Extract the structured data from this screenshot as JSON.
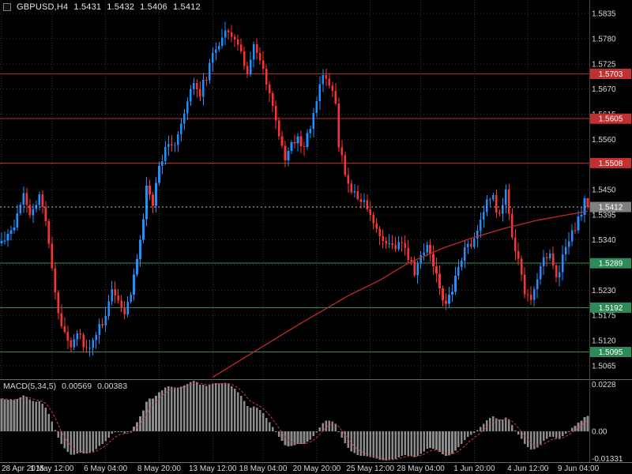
{
  "header": {
    "symbol_period": "GBPUSD,H4",
    "open": "1.5431",
    "high": "1.5432",
    "low": "1.5406",
    "close": "1.5412"
  },
  "macd_header": {
    "name": "MACD(5,34,5)",
    "value_main": "0.00569",
    "value_signal": "0.00383"
  },
  "colors": {
    "background": "#000000",
    "bull": "#1e90ff",
    "bear": "#ff3232",
    "resistance_line": "#b03030",
    "resistance_box": "#c23030",
    "support_line": "#2e8b57",
    "support_box": "#2e8b57",
    "current_box": "#7f7f7f",
    "current_line": "#bdbdbd",
    "ma_line": "#c62828",
    "grid": "#2f2f2f",
    "vgrid": "#353535",
    "axis_text": "#d9d9d9",
    "separator": "#6a6a6a",
    "histogram": "#8c8c8c",
    "signal_line": "#d23b3b"
  },
  "chart_data": {
    "type": "candlestick",
    "title": "GBPUSD H4 with MACD(5,34,5)",
    "symbol": "GBPUSD",
    "timeframe": "H4",
    "bars_total": 187,
    "last_candle": {
      "open": 1.5431,
      "high": 1.5432,
      "low": 1.5406,
      "close": 1.5412
    },
    "price_axis": {
      "min": 1.5039,
      "max": 1.5861,
      "ticks": [
        1.5835,
        1.578,
        1.5725,
        1.567,
        1.5615,
        1.556,
        1.5505,
        1.545,
        1.5395,
        1.534,
        1.5285,
        1.523,
        1.5175,
        1.512,
        1.5065
      ]
    },
    "levels": {
      "resistance": [
        1.5703,
        1.5605,
        1.5508
      ],
      "support": [
        1.5289,
        1.5192,
        1.5095
      ],
      "current_price": 1.5412
    },
    "time_labels": [
      {
        "bar": 0,
        "text": "28 Apr 2015"
      },
      {
        "bar": 16,
        "text": "1 May 12:00"
      },
      {
        "bar": 33,
        "text": "6 May 04:00"
      },
      {
        "bar": 50,
        "text": "8 May 20:00"
      },
      {
        "bar": 67,
        "text": "13 May 12:00"
      },
      {
        "bar": 83,
        "text": "18 May 04:00"
      },
      {
        "bar": 100,
        "text": "20 May 20:00"
      },
      {
        "bar": 117,
        "text": "25 May 12:00"
      },
      {
        "bar": 133,
        "text": "28 May 04:00"
      },
      {
        "bar": 150,
        "text": "1 Jun 20:00"
      },
      {
        "bar": 167,
        "text": "4 Jun 12:00"
      },
      {
        "bar": 183,
        "text": "9 Jun 04:00"
      }
    ],
    "price_path": [
      [
        0,
        1.5335
      ],
      [
        4,
        1.5375
      ],
      [
        7,
        1.545
      ],
      [
        9,
        1.5395
      ],
      [
        12,
        1.543
      ],
      [
        14,
        1.539
      ],
      [
        16,
        1.528
      ],
      [
        18,
        1.517
      ],
      [
        20,
        1.514
      ],
      [
        22,
        1.5115
      ],
      [
        24,
        1.514
      ],
      [
        26,
        1.511
      ],
      [
        28,
        1.5095
      ],
      [
        30,
        1.514
      ],
      [
        33,
        1.517
      ],
      [
        35,
        1.5235
      ],
      [
        37,
        1.521
      ],
      [
        39,
        1.517
      ],
      [
        41,
        1.523
      ],
      [
        44,
        1.533
      ],
      [
        46,
        1.545
      ],
      [
        48,
        1.542
      ],
      [
        50,
        1.55
      ],
      [
        53,
        1.556
      ],
      [
        55,
        1.5545
      ],
      [
        58,
        1.561
      ],
      [
        61,
        1.569
      ],
      [
        63,
        1.566
      ],
      [
        66,
        1.572
      ],
      [
        68,
        1.576
      ],
      [
        70,
        1.5785
      ],
      [
        72,
        1.5805
      ],
      [
        74,
        1.578
      ],
      [
        76,
        1.5745
      ],
      [
        78,
        1.571
      ],
      [
        80,
        1.576
      ],
      [
        82,
        1.573
      ],
      [
        84,
        1.568
      ],
      [
        86,
        1.564
      ],
      [
        88,
        1.556
      ],
      [
        90,
        1.552
      ],
      [
        92,
        1.5545
      ],
      [
        94,
        1.556
      ],
      [
        96,
        1.5545
      ],
      [
        98,
        1.5585
      ],
      [
        100,
        1.565
      ],
      [
        102,
        1.5695
      ],
      [
        104,
        1.568
      ],
      [
        106,
        1.564
      ],
      [
        107,
        1.555
      ],
      [
        109,
        1.548
      ],
      [
        111,
        1.545
      ],
      [
        113,
        1.543
      ],
      [
        115,
        1.542
      ],
      [
        117,
        1.539
      ],
      [
        119,
        1.536
      ],
      [
        121,
        1.534
      ],
      [
        124,
        1.532
      ],
      [
        127,
        1.534
      ],
      [
        129,
        1.53
      ],
      [
        131,
        1.527
      ],
      [
        133,
        1.53
      ],
      [
        135,
        1.533
      ],
      [
        137,
        1.529
      ],
      [
        139,
        1.523
      ],
      [
        141,
        1.52
      ],
      [
        143,
        1.523
      ],
      [
        145,
        1.529
      ],
      [
        147,
        1.532
      ],
      [
        150,
        1.534
      ],
      [
        152,
        1.539
      ],
      [
        154,
        1.542
      ],
      [
        156,
        1.543
      ],
      [
        158,
        1.539
      ],
      [
        160,
        1.544
      ],
      [
        162,
        1.535
      ],
      [
        164,
        1.529
      ],
      [
        166,
        1.523
      ],
      [
        168,
        1.52
      ],
      [
        170,
        1.526
      ],
      [
        172,
        1.53
      ],
      [
        174,
        1.531
      ],
      [
        176,
        1.526
      ],
      [
        178,
        1.53
      ],
      [
        180,
        1.534
      ],
      [
        182,
        1.537
      ],
      [
        184,
        1.54
      ],
      [
        185,
        1.5431
      ],
      [
        186,
        1.5412
      ]
    ],
    "prehistory": [
      [
        -60,
        1.492
      ],
      [
        -45,
        1.496
      ],
      [
        -30,
        1.504
      ],
      [
        -20,
        1.512
      ],
      [
        -12,
        1.52
      ],
      [
        -6,
        1.529
      ],
      [
        -2,
        1.533
      ]
    ],
    "ma_waypoints": [
      [
        67,
        1.504
      ],
      [
        80,
        1.5095
      ],
      [
        95,
        1.5158
      ],
      [
        110,
        1.5218
      ],
      [
        120,
        1.5252
      ],
      [
        129,
        1.5289
      ],
      [
        140,
        1.5322
      ],
      [
        150,
        1.5346
      ],
      [
        160,
        1.5366
      ],
      [
        170,
        1.5383
      ],
      [
        178,
        1.5393
      ],
      [
        186,
        1.5403
      ]
    ],
    "indicator": {
      "type": "MACD",
      "params": [
        5,
        34,
        5
      ],
      "current": 0.00569,
      "signal_current": 0.00383,
      "scale": {
        "max": 0.0228,
        "min": -0.01331
      },
      "axis_labels": [
        "0.0228",
        "0.00",
        "-0.01331"
      ]
    }
  }
}
